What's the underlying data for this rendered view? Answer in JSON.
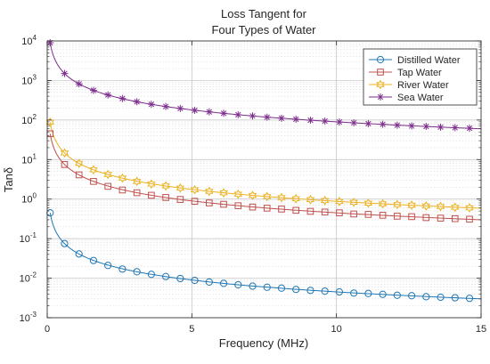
{
  "chart_data": {
    "type": "line",
    "title": [
      "Loss Tangent for",
      "Four Types of Water"
    ],
    "xlabel": "Frequency (MHz)",
    "ylabel": "Tanδ",
    "xlim": [
      0,
      15
    ],
    "ylim": [
      0.001,
      10000
    ],
    "yscale": "log",
    "grid": true,
    "minor_grid": true,
    "xticks": [
      0,
      5,
      10,
      15
    ],
    "yticks": [
      {
        "value": 0.001,
        "base": "10",
        "exp": "-3"
      },
      {
        "value": 0.01,
        "base": "10",
        "exp": "-2"
      },
      {
        "value": 0.1,
        "base": "10",
        "exp": "-1"
      },
      {
        "value": 1,
        "base": "10",
        "exp": "0"
      },
      {
        "value": 10,
        "base": "10",
        "exp": "1"
      },
      {
        "value": 100,
        "base": "10",
        "exp": "2"
      },
      {
        "value": 1000,
        "base": "10",
        "exp": "3"
      },
      {
        "value": 10000,
        "base": "10",
        "exp": "4"
      }
    ],
    "legend_position": "top-right",
    "series": [
      {
        "name": "Distilled Water",
        "color": "#1f77b4",
        "marker": "circle",
        "curve": {
          "a": 0.045,
          "b": 0.0
        },
        "marker_x": [
          0.1,
          0.6,
          1.1,
          1.6,
          2.1,
          2.6,
          3.1,
          3.6,
          4.1,
          4.6,
          5.1,
          5.6,
          6.1,
          6.6,
          7.1,
          7.6,
          8.1,
          8.6,
          9.1,
          9.6,
          10.1,
          10.6,
          11.1,
          11.6,
          12.1,
          12.6,
          13.1,
          13.6,
          14.1,
          14.6
        ],
        "marker_y": [
          0.45,
          0.075,
          0.041,
          0.028,
          0.021,
          0.017,
          0.0145,
          0.0125,
          0.011,
          0.0098,
          0.0088,
          0.008,
          0.0074,
          0.0068,
          0.0063,
          0.0059,
          0.0056,
          0.0052,
          0.0049,
          0.0047,
          0.0045,
          0.0042,
          0.0041,
          0.0039,
          0.0037,
          0.0036,
          0.0034,
          0.0033,
          0.0032,
          0.0031
        ]
      },
      {
        "name": "Tap Water",
        "color": "#c0504d",
        "marker": "square",
        "curve": {
          "a": 4.5,
          "b": 0.0
        },
        "marker_x": [
          0.1,
          0.6,
          1.1,
          1.6,
          2.1,
          2.6,
          3.1,
          3.6,
          4.1,
          4.6,
          5.1,
          5.6,
          6.1,
          6.6,
          7.1,
          7.6,
          8.1,
          8.6,
          9.1,
          9.6,
          10.1,
          10.6,
          11.1,
          11.6,
          12.1,
          12.6,
          13.1,
          13.6,
          14.1,
          14.6
        ],
        "marker_y": [
          45,
          7.5,
          4.1,
          2.8,
          2.1,
          1.7,
          1.45,
          1.25,
          1.1,
          0.98,
          0.88,
          0.8,
          0.74,
          0.68,
          0.63,
          0.59,
          0.56,
          0.52,
          0.49,
          0.47,
          0.45,
          0.42,
          0.41,
          0.39,
          0.37,
          0.36,
          0.34,
          0.33,
          0.32,
          0.31
        ]
      },
      {
        "name": "River Water",
        "color": "#edb120",
        "marker": "hexagram",
        "curve": {
          "a": 8.8,
          "b": 0.0
        },
        "marker_x": [
          0.1,
          0.6,
          1.1,
          1.6,
          2.1,
          2.6,
          3.1,
          3.6,
          4.1,
          4.6,
          5.1,
          5.6,
          6.1,
          6.6,
          7.1,
          7.6,
          8.1,
          8.6,
          9.1,
          9.6,
          10.1,
          10.6,
          11.1,
          11.6,
          12.1,
          12.6,
          13.1,
          13.6,
          14.1,
          14.6
        ],
        "marker_y": [
          88,
          14.7,
          8.0,
          5.5,
          4.2,
          3.4,
          2.8,
          2.4,
          2.15,
          1.9,
          1.72,
          1.57,
          1.44,
          1.33,
          1.24,
          1.16,
          1.09,
          1.02,
          0.97,
          0.92,
          0.87,
          0.83,
          0.79,
          0.76,
          0.73,
          0.7,
          0.67,
          0.65,
          0.62,
          0.6
        ]
      },
      {
        "name": "Sea Water",
        "color": "#7e2f8e",
        "marker": "asterisk",
        "curve": {
          "a": 900,
          "b": 0.0
        },
        "marker_x": [
          0.1,
          0.6,
          1.1,
          1.6,
          2.1,
          2.6,
          3.1,
          3.6,
          4.1,
          4.6,
          5.1,
          5.6,
          6.1,
          6.6,
          7.1,
          7.6,
          8.1,
          8.6,
          9.1,
          9.6,
          10.1,
          10.6,
          11.1,
          11.6,
          12.1,
          12.6,
          13.1,
          13.6,
          14.1,
          14.6
        ],
        "marker_y": [
          9000,
          1500,
          820,
          560,
          430,
          350,
          290,
          250,
          220,
          196,
          176,
          161,
          148,
          136,
          127,
          118,
          111,
          105,
          99,
          94,
          89,
          85,
          81,
          78,
          74,
          71,
          69,
          66,
          64,
          62
        ]
      }
    ]
  }
}
